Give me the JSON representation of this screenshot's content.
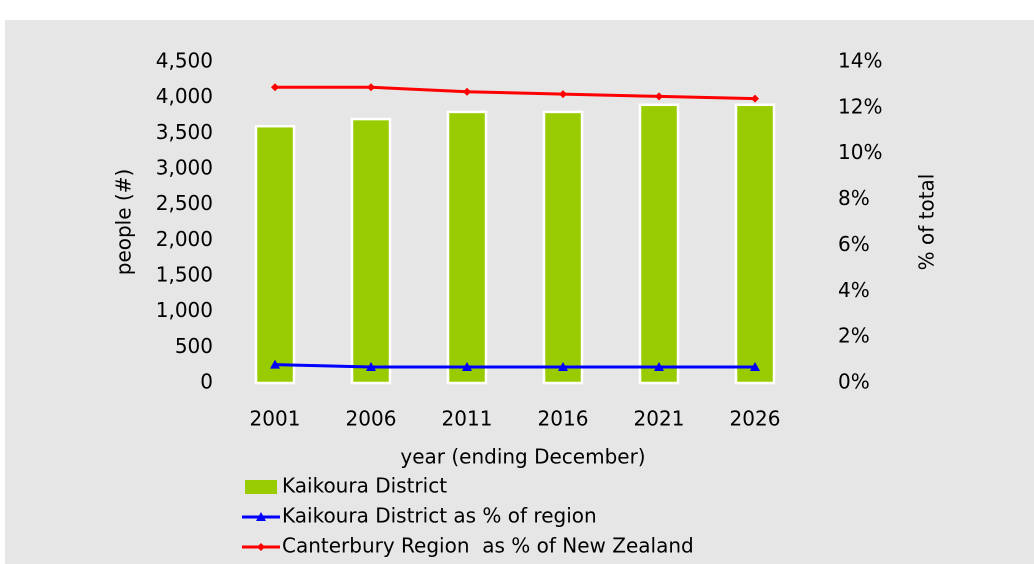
{
  "chart_data": {
    "type": "bar_line",
    "categories": [
      "2001",
      "2006",
      "2011",
      "2016",
      "2021",
      "2026"
    ],
    "xlabel": "year (ending December)",
    "ylabel": "people (#)",
    "y2label": "% of total",
    "ylim": [
      0,
      4500
    ],
    "yticks": [
      0,
      500,
      {
        "value": 1000,
        "label": "1,000"
      },
      {
        "value": 1500,
        "label": "1,500"
      },
      {
        "value": 2000,
        "label": "2,000"
      },
      {
        "value": 2500,
        "label": "2,500"
      },
      {
        "value": 3000,
        "label": "3,000"
      },
      {
        "value": 3500,
        "label": "3,500"
      },
      {
        "value": 4000,
        "label": "4,000"
      },
      {
        "value": 4500,
        "label": "4,500"
      }
    ],
    "y2lim": [
      0,
      14
    ],
    "y2ticks": [
      {
        "value": 0,
        "label": "0%"
      },
      {
        "value": 2,
        "label": "2%"
      },
      {
        "value": 4,
        "label": "4%"
      },
      {
        "value": 6,
        "label": "6%"
      },
      {
        "value": 8,
        "label": "8%"
      },
      {
        "value": 10,
        "label": "10%"
      },
      {
        "value": 12,
        "label": "12%"
      },
      {
        "value": 14,
        "label": "14%"
      }
    ],
    "legend": "bottom",
    "series": [
      {
        "name": "Kaikoura District",
        "type": "bar",
        "axis": "y",
        "color": "#99cc00",
        "values": [
          3600,
          3700,
          3800,
          3800,
          3900,
          3900
        ]
      },
      {
        "name": "Kaikoura District as % of region",
        "type": "line",
        "axis": "y2",
        "color": "#0000ff",
        "marker": "triangle",
        "values": [
          0.8,
          0.7,
          0.7,
          0.7,
          0.7,
          0.7
        ]
      },
      {
        "name": "Canterbury Region  as % of New Zealand",
        "type": "line",
        "axis": "y2",
        "color": "#ff0000",
        "marker": "diamond",
        "values": [
          12.9,
          12.9,
          12.7,
          12.6,
          12.5,
          12.4
        ]
      }
    ]
  }
}
